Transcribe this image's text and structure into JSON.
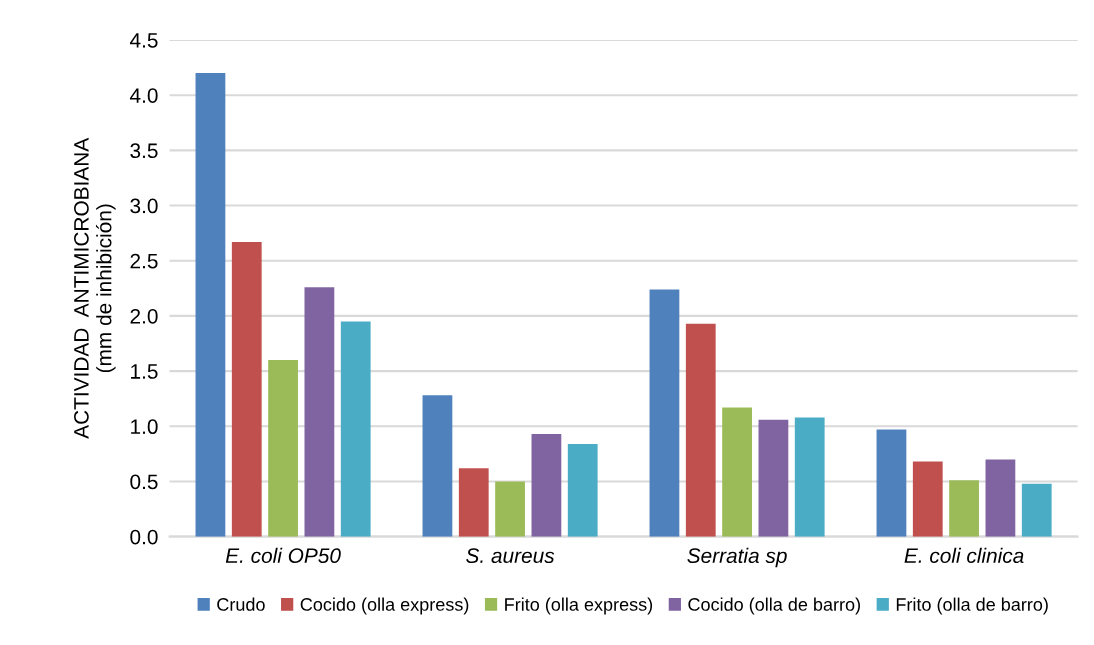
{
  "chart_data": {
    "type": "bar",
    "ylabel": "ACTIVIDAD  ANTIMICROBIANA\n(mm de inhibición)",
    "categories": [
      "E. coli OP50",
      "S. aureus",
      "Serratia sp",
      "E. coli clinica"
    ],
    "series": [
      {
        "name": "Crudo",
        "color": "#4f81bd",
        "values": [
          4.2,
          1.28,
          2.24,
          0.97
        ]
      },
      {
        "name": "Cocido (olla express)",
        "color": "#c0504d",
        "values": [
          2.67,
          0.62,
          1.93,
          0.68
        ]
      },
      {
        "name": "Frito (olla express)",
        "color": "#9bbb59",
        "values": [
          1.6,
          0.5,
          1.17,
          0.51
        ]
      },
      {
        "name": "Cocido (olla de barro)",
        "color": "#8064a2",
        "values": [
          2.26,
          0.93,
          1.06,
          0.7
        ]
      },
      {
        "name": "Frito (olla de barro)",
        "color": "#4bacc6",
        "values": [
          1.95,
          0.84,
          1.08,
          0.48
        ]
      }
    ],
    "ylim": [
      0,
      4.5
    ],
    "yticks": [
      {
        "value": 0,
        "label": "0.0"
      },
      {
        "value": 0.5,
        "label": "0.5"
      },
      {
        "value": 1,
        "label": "1.0"
      },
      {
        "value": 1.5,
        "label": "1.5"
      },
      {
        "value": 2,
        "label": "2.0"
      },
      {
        "value": 2.5,
        "label": "2.5"
      },
      {
        "value": 3,
        "label": "3.0"
      },
      {
        "value": 3.5,
        "label": "3.5"
      },
      {
        "value": 4,
        "label": "4.0"
      },
      {
        "value": 4.5,
        "label": "4.5"
      }
    ],
    "grid": "y",
    "legend": "bottom"
  }
}
